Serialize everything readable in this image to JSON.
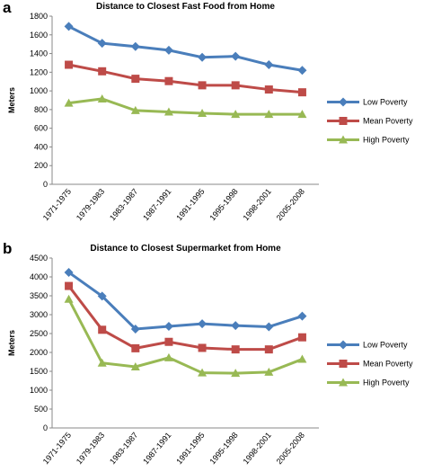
{
  "chart_data": [
    {
      "type": "line",
      "panel_label": "a",
      "title": "Distance to Closest Fast Food from Home",
      "y_label": "Meters",
      "categories": [
        "1971-1975",
        "1979-1983",
        "1983-1987",
        "1987-1991",
        "1991-1995",
        "1995-1998",
        "1998-2001",
        "2005-2008"
      ],
      "series": [
        {
          "name": "Low Poverty",
          "color": "#4a7ebb",
          "marker": "diamond",
          "values": [
            1690,
            1510,
            1475,
            1435,
            1360,
            1370,
            1280,
            1220
          ]
        },
        {
          "name": "Mean Poverty",
          "color": "#be4b48",
          "marker": "square",
          "values": [
            1280,
            1210,
            1130,
            1105,
            1060,
            1060,
            1015,
            985
          ]
        },
        {
          "name": "High Poverty",
          "color": "#98b954",
          "marker": "triangle",
          "values": [
            870,
            915,
            790,
            775,
            760,
            750,
            750,
            750
          ]
        }
      ],
      "ylim": [
        0,
        1800
      ],
      "yticks": [
        0,
        200,
        400,
        600,
        800,
        1000,
        1200,
        1400,
        1600,
        1800
      ],
      "legend": "right"
    },
    {
      "type": "line",
      "panel_label": "b",
      "title": "Distance to Closest Supermarket from Home",
      "y_label": "Meters",
      "categories": [
        "1971-1975",
        "1979-1983",
        "1983-1987",
        "1987-1991",
        "1991-1995",
        "1995-1998",
        "1998-2001",
        "2005-2008"
      ],
      "series": [
        {
          "name": "Low Poverty",
          "color": "#4a7ebb",
          "marker": "diamond",
          "values": [
            4120,
            3490,
            2620,
            2690,
            2760,
            2710,
            2680,
            2960
          ]
        },
        {
          "name": "Mean Poverty",
          "color": "#be4b48",
          "marker": "square",
          "values": [
            3760,
            2600,
            2110,
            2280,
            2120,
            2080,
            2080,
            2400
          ]
        },
        {
          "name": "High Poverty",
          "color": "#98b954",
          "marker": "triangle",
          "values": [
            3410,
            1720,
            1620,
            1860,
            1460,
            1450,
            1480,
            1820
          ]
        }
      ],
      "ylim": [
        0,
        4500
      ],
      "yticks": [
        0,
        500,
        1000,
        1500,
        2000,
        2500,
        3000,
        3500,
        4000,
        4500
      ],
      "legend": "right"
    }
  ]
}
